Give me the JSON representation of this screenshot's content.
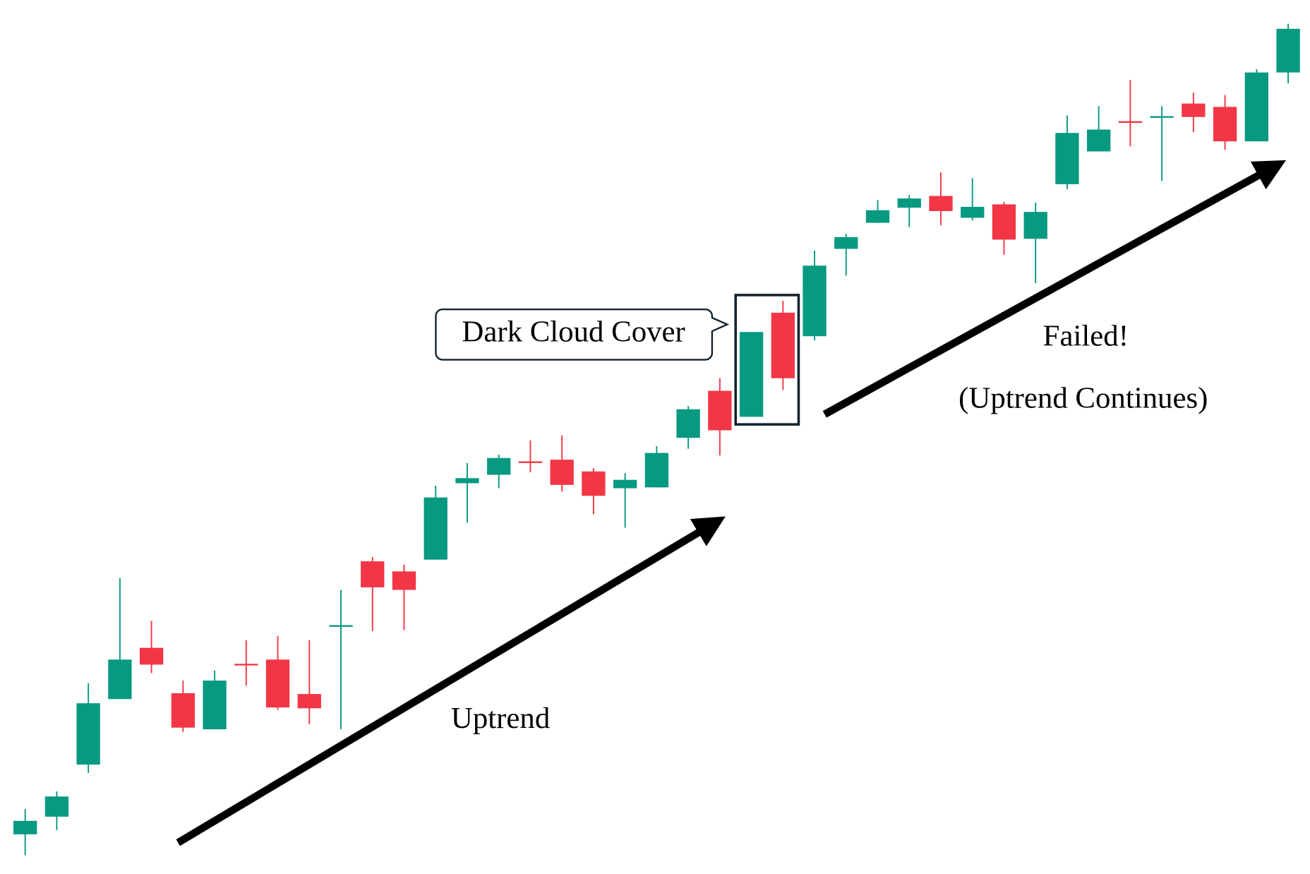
{
  "chart_data": {
    "type": "candlestick",
    "up_color": "#089981",
    "down_color": "#f23645",
    "ylim": [
      0,
      104
    ],
    "open": [
      4.7,
      6.8,
      13,
      20.8,
      26.9,
      21.5,
      17.2,
      25,
      25.5,
      21.4,
      29.5,
      37.2,
      36,
      37.4,
      46.5,
      47.5,
      49.1,
      49.3,
      47.9,
      45.9,
      46,
      51.9,
      57.5,
      54.4,
      66.8,
      64,
      74.4,
      77.5,
      79.3,
      80.7,
      78.1,
      79.7,
      75.6,
      82.1,
      86,
      89.6,
      90,
      91.7,
      91.3,
      87.2,
      95.4
    ],
    "high": [
      7.7,
      9.8,
      22.7,
      35.2,
      30.1,
      23,
      24.2,
      27.8,
      28.3,
      27.8,
      33.8,
      37.7,
      36.8,
      46.2,
      48.9,
      49.9,
      51.6,
      52.2,
      48.3,
      47.7,
      50.9,
      55.7,
      59,
      64.5,
      68.2,
      74.2,
      76.2,
      80.2,
      80.8,
      83.5,
      82.8,
      80,
      79.9,
      90.3,
      91.4,
      94.5,
      91.4,
      93,
      92.7,
      95.8,
      101.2
    ],
    "low": [
      2.2,
      5.2,
      12,
      20.8,
      23.9,
      16.9,
      17.2,
      22.4,
      19.5,
      17.8,
      17.2,
      28.9,
      29,
      37.4,
      41.8,
      45.9,
      47.8,
      45.5,
      42.8,
      41.2,
      46,
      50.6,
      49.8,
      54.4,
      57.6,
      63.5,
      71.2,
      77.5,
      77,
      77.2,
      77.8,
      73.7,
      70.3,
      81.5,
      86,
      86.6,
      82.5,
      88.3,
      86.2,
      87.2,
      94.1
    ],
    "close": [
      6.3,
      9.2,
      20.3,
      25.5,
      24.9,
      17.4,
      23,
      24.8,
      19.8,
      19.7,
      29.6,
      34.1,
      33.8,
      44.8,
      47.1,
      49.5,
      48.9,
      46.3,
      45,
      46.9,
      50.1,
      55.3,
      52.8,
      64.5,
      59,
      72.4,
      75.8,
      79,
      80.4,
      78.9,
      79.4,
      75.5,
      78.8,
      88.2,
      88.6,
      89.4,
      90.2,
      90.1,
      87.2,
      95.4,
      100.6
    ],
    "annotations": {
      "pattern": "Dark Cloud Cover",
      "trend": "Uptrend",
      "result": "Failed!",
      "result_note": "(Uptrend Continues)"
    }
  }
}
